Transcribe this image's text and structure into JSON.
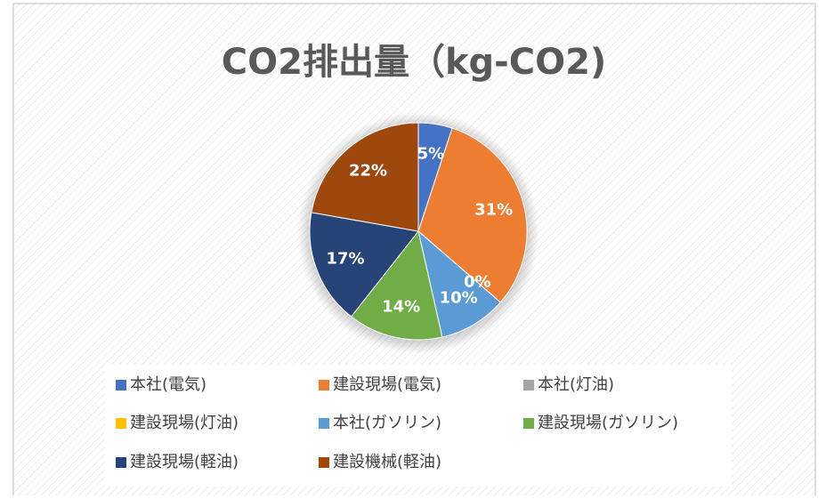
{
  "chart_data": {
    "type": "pie",
    "title": "CO2排出量（kg-CO2)",
    "categories": [
      "本社(電気)",
      "建設現場(電気)",
      "本社(灯油)",
      "建設現場(灯油)",
      "本社(ガソリン)",
      "建設現場(ガソリン)",
      "建設現場(軽油)",
      "建設機械(軽油)"
    ],
    "values": [
      5,
      31,
      0,
      0,
      10,
      14,
      17,
      22
    ],
    "value_labels": [
      "5%",
      "31%",
      "0%",
      "0%",
      "10%",
      "14%",
      "17%",
      "22%"
    ],
    "colors": [
      "#4472c4",
      "#ed7d31",
      "#a5a5a5",
      "#ffc000",
      "#5b9bd5",
      "#70ad47",
      "#264478",
      "#9e480e"
    ],
    "legend": "bottom"
  }
}
